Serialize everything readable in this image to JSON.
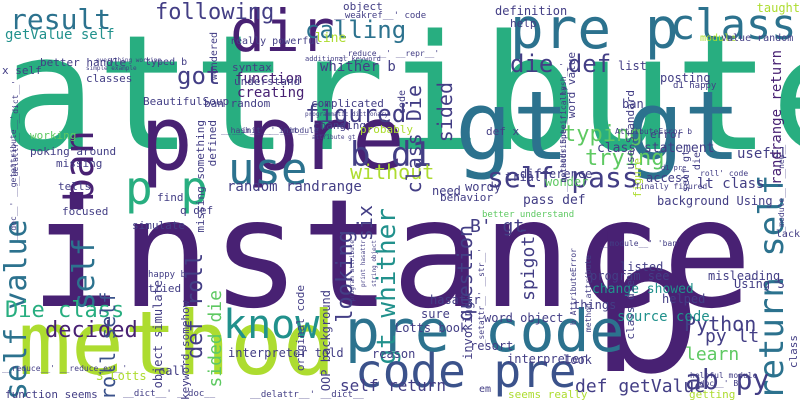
{
  "palette": {
    "dark_purple": "#482173",
    "indigo": "#433e85",
    "blue": "#3b528b",
    "steel": "#2c728e",
    "teal": "#21918c",
    "green": "#28ae80",
    "lime_green": "#5ec962",
    "yellow_green": "#addc30",
    "background": "#ffffff"
  },
  "words": [
    {
      "text": "attribute",
      "color": "#28ae80",
      "rot": 0
    },
    {
      "text": "instance",
      "color": "#482173",
      "rot": 0
    },
    {
      "text": "b",
      "color": "#482173",
      "rot": 0
    },
    {
      "text": "method",
      "color": "#addc30",
      "rot": 0
    },
    {
      "text": "gt gt",
      "color": "#2c728e",
      "rot": 0
    },
    {
      "text": "p pre",
      "color": "#482173",
      "rot": 0
    },
    {
      "text": "pre p",
      "color": "#2c728e",
      "rot": 0
    },
    {
      "text": "dir",
      "color": "#482173",
      "rot": 0
    },
    {
      "text": "class",
      "color": "#2c728e",
      "rot": 0
    },
    {
      "text": "result",
      "color": "#2c728e",
      "rot": 0
    },
    {
      "text": "pre code",
      "color": "#2c728e",
      "rot": 0
    },
    {
      "text": "code pre",
      "color": "#3b528b",
      "rot": 0
    },
    {
      "text": "know",
      "color": "#21918c",
      "rot": 0
    },
    {
      "text": "use",
      "color": "#2c728e",
      "rot": 0
    },
    {
      "text": "p p",
      "color": "#28ae80",
      "rot": 0
    },
    {
      "text": "self value",
      "color": "#2c728e",
      "rot": 270
    },
    {
      "text": "self",
      "color": "#2c728e",
      "rot": 270
    },
    {
      "text": "ban",
      "color": "#482173",
      "rot": 270
    },
    {
      "text": "return self",
      "color": "#2c728e",
      "rot": 270
    },
    {
      "text": "calling",
      "color": "#2c728e",
      "rot": 0
    },
    {
      "text": "following",
      "color": "#433e85",
      "rot": 0
    },
    {
      "text": "die def",
      "color": "#433e85",
      "rot": 0
    },
    {
      "text": "b d1",
      "color": "#433e85",
      "rot": 0
    },
    {
      "text": "got",
      "color": "#433e85",
      "rot": 0
    },
    {
      "text": "figured",
      "color": "#433e85",
      "rot": 0
    },
    {
      "text": "typing",
      "color": "#5ec962",
      "rot": 0
    },
    {
      "text": "trying",
      "color": "#5ec962",
      "rot": 0
    },
    {
      "text": "self pass",
      "color": "#433e85",
      "rot": 0
    },
    {
      "text": "without",
      "color": "#addc30",
      "rot": 0
    },
    {
      "text": "decided",
      "color": "#482173",
      "rot": 0
    },
    {
      "text": "Die class",
      "color": "#28ae80",
      "rot": 0
    },
    {
      "text": "ab py",
      "color": "#433e85",
      "rot": 0
    },
    {
      "text": "Python",
      "color": "#433e85",
      "rot": 0
    },
    {
      "text": "learn",
      "color": "#5ec962",
      "rot": 0
    },
    {
      "text": "py lt",
      "color": "#433e85",
      "rot": 0
    },
    {
      "text": "def getValue",
      "color": "#433e85",
      "rot": 0
    },
    {
      "text": "self return",
      "color": "#433e85",
      "rot": 0
    },
    {
      "text": "six",
      "color": "#433e85",
      "rot": 270
    },
    {
      "text": "class Die",
      "color": "#433e85",
      "rot": 270
    },
    {
      "text": "sided",
      "color": "#433e85",
      "rot": 270
    },
    {
      "text": "gt whither",
      "color": "#21918c",
      "rot": 270
    },
    {
      "text": "looking",
      "color": "#433e85",
      "rot": 270
    },
    {
      "text": "def roll",
      "color": "#433e85",
      "rot": 270
    },
    {
      "text": "sided die",
      "color": "#5ec962",
      "rot": 270
    },
    {
      "text": "roll self",
      "color": "#3b528b",
      "rot": 270
    },
    {
      "text": "question",
      "color": "#433e85",
      "rot": 270
    },
    {
      "text": "getValue self",
      "color": "#21918c",
      "rot": 0
    },
    {
      "text": "whither b",
      "color": "#433e85",
      "rot": 0
    },
    {
      "text": "random randrange",
      "color": "#433e85",
      "rot": 0
    },
    {
      "text": "line",
      "color": "#addc30",
      "rot": 0
    },
    {
      "text": "function",
      "color": "#482173",
      "rot": 0
    },
    {
      "text": "creating",
      "color": "#482173",
      "rot": 0
    },
    {
      "text": "class statement",
      "color": "#433e85",
      "rot": 0
    },
    {
      "text": "lt class",
      "color": "#433e85",
      "rot": 0
    },
    {
      "text": "useful",
      "color": "#433e85",
      "rot": 0
    },
    {
      "text": "source code",
      "color": "#21918c",
      "rot": 0
    },
    {
      "text": "randrange return",
      "color": "#482173",
      "rot": 270
    },
    {
      "text": "definition",
      "color": "#433e85",
      "rot": 0
    },
    {
      "text": "taught",
      "color": "#addc30",
      "rot": 0
    },
    {
      "text": "module",
      "color": "#addc30",
      "rot": 0
    },
    {
      "text": "value random",
      "color": "#433e85",
      "rot": 0
    },
    {
      "text": "list",
      "color": "#433e85",
      "rot": 0
    },
    {
      "text": "posting",
      "color": "#433e85",
      "rot": 0
    },
    {
      "text": "ban",
      "color": "#433e85",
      "rot": 0
    },
    {
      "text": "help",
      "color": "#433e85",
      "rot": 0
    },
    {
      "text": "access",
      "color": "#433e85",
      "rot": 0
    },
    {
      "text": "background Using",
      "color": "#433e85",
      "rot": 0
    },
    {
      "text": "B' gt",
      "color": "#433e85",
      "rot": 0
    },
    {
      "text": "pass def",
      "color": "#433e85",
      "rot": 0
    },
    {
      "text": "difference",
      "color": "#433e85",
      "rot": 0
    },
    {
      "text": "trial",
      "color": "#433e85",
      "rot": 0
    },
    {
      "text": "wonder",
      "color": "#5ec962",
      "rot": 0
    },
    {
      "text": "error",
      "color": "#433e85",
      "rot": 0
    },
    {
      "text": "wordy",
      "color": "#433e85",
      "rot": 0
    },
    {
      "text": "need",
      "color": "#433e85",
      "rot": 0
    },
    {
      "text": "program see",
      "color": "#433e85",
      "rot": 0
    },
    {
      "text": "change showed",
      "color": "#21918c",
      "rot": 0
    },
    {
      "text": "things",
      "color": "#433e85",
      "rot": 0
    },
    {
      "text": "helped",
      "color": "#433e85",
      "rot": 0
    },
    {
      "text": "misleading",
      "color": "#433e85",
      "rot": 0
    },
    {
      "text": "Using S",
      "color": "#433e85",
      "rot": 0
    },
    {
      "text": "listed",
      "color": "#433e85",
      "rot": 0
    },
    {
      "text": "spigot'",
      "color": "#433e85",
      "rot": 270
    },
    {
      "text": "word object",
      "color": "#433e85",
      "rot": 0
    },
    {
      "text": "Lotts book",
      "color": "#433e85",
      "rot": 0
    },
    {
      "text": "resort",
      "color": "#433e85",
      "rot": 0
    },
    {
      "text": "sure",
      "color": "#433e85",
      "rot": 0
    },
    {
      "text": "reason",
      "color": "#433e85",
      "rot": 0
    },
    {
      "text": "interpreter",
      "color": "#433e85",
      "rot": 0
    },
    {
      "text": "look",
      "color": "#433e85",
      "rot": 0
    },
    {
      "text": "invoking",
      "color": "#433e85",
      "rot": 270
    },
    {
      "text": "OOP background",
      "color": "#433e85",
      "rot": 270
    },
    {
      "text": "original code",
      "color": "#433e85",
      "rot": 270
    },
    {
      "text": "object simulate",
      "color": "#433e85",
      "rot": 270
    },
    {
      "text": "S Lotts",
      "color": "#addc30",
      "rot": 0
    },
    {
      "text": "call",
      "color": "#433e85",
      "rot": 0
    },
    {
      "text": "keyword somehow",
      "color": "#433e85",
      "rot": 270
    },
    {
      "text": "interpreter told",
      "color": "#433e85",
      "rot": 0
    },
    {
      "text": "function seems",
      "color": "#433e85",
      "rot": 0
    },
    {
      "text": "__dict__' __doc__",
      "color": "#433e85",
      "rot": 0
    },
    {
      "text": "__delattr__' __dict__",
      "color": "#433e85",
      "rot": 0
    },
    {
      "text": "seems really",
      "color": "#addc30",
      "rot": 0
    },
    {
      "text": "getting",
      "color": "#addc30",
      "rot": 0
    },
    {
      "text": "really powerful",
      "color": "#433e85",
      "rot": 0
    },
    {
      "text": "syntax",
      "color": "#433e85",
      "rot": 0
    },
    {
      "text": "understand",
      "color": "#433e85",
      "rot": 0
    },
    {
      "text": "ban random",
      "color": "#433e85",
      "rot": 0
    },
    {
      "text": "complicated",
      "color": "#433e85",
      "rot": 0
    },
    {
      "text": "changing",
      "color": "#433e85",
      "rot": 0
    },
    {
      "text": "probably",
      "color": "#addc30",
      "rot": 0
    },
    {
      "text": "BeautifulSoup",
      "color": "#433e85",
      "rot": 0
    },
    {
      "text": "better handle",
      "color": "#433e85",
      "rot": 0
    },
    {
      "text": "x self",
      "color": "#433e85",
      "rot": 0
    },
    {
      "text": "classes",
      "color": "#433e85",
      "rot": 0
    },
    {
      "text": "working",
      "color": "#5ec962",
      "rot": 0
    },
    {
      "text": "poking around",
      "color": "#433e85",
      "rot": 0
    },
    {
      "text": "missing",
      "color": "#433e85",
      "rot": 0
    },
    {
      "text": "tells",
      "color": "#433e85",
      "rot": 0
    },
    {
      "text": "focused",
      "color": "#433e85",
      "rot": 0
    },
    {
      "text": "simulate",
      "color": "#433e85",
      "rot": 0
    },
    {
      "text": "find",
      "color": "#433e85",
      "rot": 0
    },
    {
      "text": "happy b",
      "color": "#433e85",
      "rot": 0
    },
    {
      "text": "tried",
      "color": "#433e85",
      "rot": 0
    },
    {
      "text": "q def",
      "color": "#433e85",
      "rot": 0
    },
    {
      "text": "behavior",
      "color": "#433e85",
      "rot": 0
    },
    {
      "text": "typed b",
      "color": "#433e85",
      "rot": 0
    },
    {
      "text": "wondered",
      "color": "#433e85",
      "rot": 270
    },
    {
      "text": "defined",
      "color": "#433e85",
      "rot": 270
    },
    {
      "text": "missing something",
      "color": "#433e85",
      "rot": 270
    },
    {
      "text": "object",
      "color": "#433e85",
      "rot": 0
    },
    {
      "text": "code",
      "color": "#433e85",
      "rot": 270
    },
    {
      "text": "word value",
      "color": "#433e85",
      "rot": 270
    },
    {
      "text": "use Standard",
      "color": "#433e85",
      "rot": 270
    },
    {
      "text": "def x",
      "color": "#433e85",
      "rot": 0
    },
    {
      "text": "d1 happy",
      "color": "#433e85",
      "rot": 0
    },
    {
      "text": "em",
      "color": "#433e85",
      "rot": 0
    },
    {
      "text": "lack",
      "color": "#433e85",
      "rot": 0
    },
    {
      "text": "figure",
      "color": "#addc30",
      "rot": 270
    },
    {
      "text": "class",
      "color": "#433e85",
      "rot": 270
    },
    {
      "text": "__weakref__' code",
      "color": "#433e85",
      "rot": 0
    },
    {
      "text": "__reduce__' __repr__'",
      "color": "#433e85",
      "rot": 0
    },
    {
      "text": "__hash__' __init__'",
      "color": "#433e85",
      "rot": 0
    },
    {
      "text": "__init__' __module__'",
      "color": "#433e85",
      "rot": 0
    },
    {
      "text": "__module__' __new__'",
      "color": "#433e85",
      "rot": 270
    },
    {
      "text": "__reduce__' __reduce_ex__'",
      "color": "#433e85",
      "rot": 0
    },
    {
      "text": "__getattribute__' __hash__'",
      "color": "#433e85",
      "rot": 270
    },
    {
      "text": "__setattr__' __str__'",
      "color": "#433e85",
      "rot": 270
    },
    {
      "text": "__doc__' __getattribute__'",
      "color": "#433e85",
      "rot": 270
    },
    {
      "text": "__delattr__' __dict__'",
      "color": "#433e85",
      "rot": 270
    },
    {
      "text": "__doc__' B",
      "color": "#433e85",
      "rot": 0
    },
    {
      "text": "__module__' 'ban'",
      "color": "#433e85",
      "rot": 0
    },
    {
      "text": "roll' code",
      "color": "#433e85",
      "rot": 0
    },
    {
      "text": "d1 pre",
      "color": "#433e85",
      "rot": 0
    },
    {
      "text": "AttributeError b",
      "color": "#433e85",
      "rot": 0
    },
    {
      "text": "finally figured",
      "color": "#433e85",
      "rot": 0
    },
    {
      "text": "helpful module",
      "color": "#433e85",
      "rot": 0
    },
    {
      "text": "b AttributeError",
      "color": "#433e85",
      "rot": 270
    },
    {
      "text": "method attribute",
      "color": "#433e85",
      "rot": 270
    },
    {
      "text": "hasattr",
      "color": "#433e85",
      "rot": 0
    },
    {
      "text": "better understand",
      "color": "#5ec962",
      "rot": 0
    },
    {
      "text": "methods Specifically",
      "color": "#433e85",
      "rot": 270
    },
    {
      "text": "additional keyword",
      "color": "#433e85",
      "rot": 0
    },
    {
      "text": "program attribute",
      "color": "#433e85",
      "rot": 270
    },
    {
      "text": "print hasattr",
      "color": "#433e85",
      "rot": 270
    },
    {
      "text": "string object",
      "color": "#433e85",
      "rot": 270
    },
    {
      "text": "everything working",
      "color": "#433e85",
      "rot": 0
    },
    {
      "text": "simple example",
      "color": "#433e85",
      "rot": 0
    },
    {
      "text": "programmatic dictionary",
      "color": "#433e85",
      "rot": 0
    },
    {
      "text": "attribute gt",
      "color": "#433e85",
      "rot": 0
    },
    {
      "text": "class die",
      "color": "#433e85",
      "rot": 270
    },
    {
      "text": "self gt",
      "color": "#433e85",
      "rot": 270
    },
    {
      "text": "die",
      "color": "#433e85",
      "rot": 270
    }
  ]
}
